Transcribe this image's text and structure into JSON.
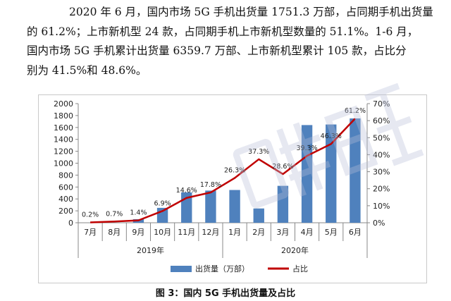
{
  "paragraph": [
    "2020 年 6 月，国内市场 5G 手机出货量 1751.3 万部，占同期手机出货量",
    "的 61.2%；上市新机型 24 款，占同期手机上市新机型数量的 51.1%。1-6 月，",
    "国内市场 5G 手机累计出货量 6359.7 万部、上市新机型累计 105 款，占比分",
    "别为 41.5%和 48.6%。"
  ],
  "caption": "图 3：国内 5G 手机出货量及占比",
  "chart_data": {
    "type": "bar",
    "categories": [
      "7月",
      "8月",
      "9月",
      "10月",
      "11月",
      "12月",
      "1月",
      "2月",
      "3月",
      "4月",
      "5月",
      "6月"
    ],
    "year_groups": [
      {
        "label": "2019年",
        "from": 0,
        "to": 5
      },
      {
        "label": "2020年",
        "from": 6,
        "to": 11
      }
    ],
    "series": [
      {
        "name": "出货量（万部）",
        "type": "bar",
        "axis": "left",
        "color": "#4f81bd",
        "values": [
          0,
          0,
          60,
          250,
          510,
          540,
          550,
          240,
          620,
          1640,
          1650,
          1751.3
        ]
      },
      {
        "name": "占比",
        "type": "line",
        "axis": "right",
        "color": "#c00000",
        "values": [
          0.2,
          0.7,
          1.4,
          6.9,
          14.6,
          17.8,
          26.3,
          37.3,
          28.6,
          39.3,
          46.3,
          61.2
        ]
      }
    ],
    "data_labels": [
      "0.2%",
      "0.7%",
      "1.4%",
      "6.9%",
      "14.6%",
      "17.8%",
      "26.3%",
      "37.3%",
      "28.6%",
      "39.3%",
      "46.3%",
      "61.2%"
    ],
    "y_left": {
      "min": 0,
      "max": 2000,
      "step": 200,
      "ticks": [
        "0",
        "200",
        "400",
        "600",
        "800",
        "1000",
        "1200",
        "1400",
        "1600",
        "1800",
        "2000"
      ]
    },
    "y_right": {
      "min": 0,
      "max": 70,
      "step": 10,
      "ticks": [
        "0%",
        "10%",
        "20%",
        "30%",
        "40%",
        "50%",
        "60%",
        "70%"
      ]
    },
    "legend_placement": "bottom",
    "grid": false
  }
}
